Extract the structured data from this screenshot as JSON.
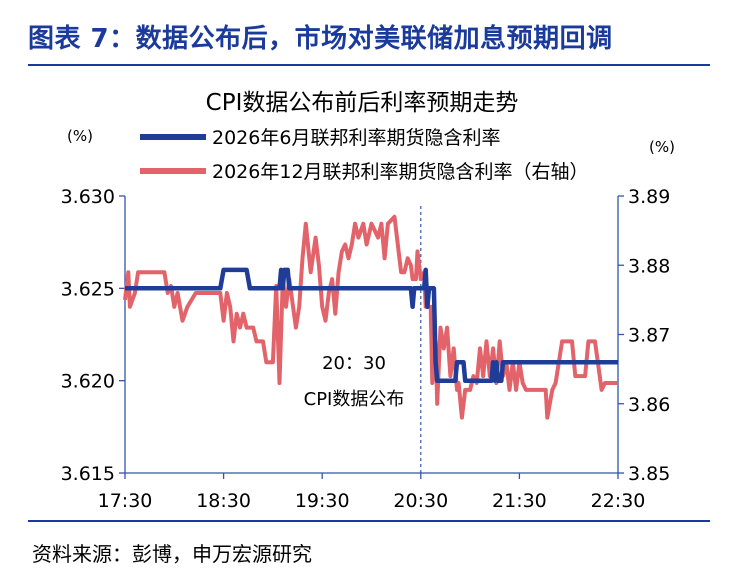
{
  "figure": {
    "title": "图表 7：数据公布后，市场对美联储加息预期回调",
    "source": "资料来源：彭博，申万宏源研究"
  },
  "colors": {
    "heading": "#1a3a9c",
    "series_left": "#1f3c99",
    "series_right": "#e2636a",
    "axis": "#3355aa"
  },
  "chart_data": {
    "type": "line",
    "title": "CPI数据公布前后利率预期走势",
    "left_unit": "(%)",
    "right_unit": "(%)",
    "xlim": [
      0,
      300
    ],
    "x_ticks": [
      {
        "x": 0,
        "label": "17:30"
      },
      {
        "x": 60,
        "label": "18:30"
      },
      {
        "x": 120,
        "label": "19:30"
      },
      {
        "x": 180,
        "label": "20:30"
      },
      {
        "x": 240,
        "label": "21:30"
      },
      {
        "x": 300,
        "label": "22:30"
      }
    ],
    "y_left": {
      "lim": [
        3.615,
        3.63
      ],
      "ticks": [
        "3.615",
        "3.620",
        "3.625",
        "3.630"
      ]
    },
    "y_right": {
      "lim": [
        3.85,
        3.89
      ],
      "ticks": [
        "3.85",
        "3.86",
        "3.87",
        "3.88",
        "3.89"
      ]
    },
    "annotation": {
      "x": 180,
      "line1": "20：30",
      "line2": "CPI数据公布"
    },
    "series": [
      {
        "name": "2026年6月联邦利率期货隐含利率",
        "axis": "left",
        "points": [
          [
            0,
            3.625
          ],
          [
            58,
            3.625
          ],
          [
            60,
            3.626
          ],
          [
            74,
            3.626
          ],
          [
            76,
            3.625
          ],
          [
            94,
            3.625
          ],
          [
            95,
            3.626
          ],
          [
            96,
            3.625
          ],
          [
            97,
            3.626
          ],
          [
            99,
            3.626
          ],
          [
            100,
            3.625
          ],
          [
            174,
            3.625
          ],
          [
            175,
            3.624
          ],
          [
            176,
            3.625
          ],
          [
            182,
            3.625
          ],
          [
            183,
            3.626
          ],
          [
            184,
            3.624
          ],
          [
            185,
            3.625
          ],
          [
            188,
            3.625
          ],
          [
            189,
            3.621
          ],
          [
            190,
            3.62
          ],
          [
            201,
            3.62
          ],
          [
            202,
            3.621
          ],
          [
            206,
            3.621
          ],
          [
            207,
            3.62
          ],
          [
            223,
            3.62
          ],
          [
            224,
            3.621
          ],
          [
            225,
            3.62
          ],
          [
            226,
            3.621
          ],
          [
            227,
            3.62
          ],
          [
            229,
            3.62
          ],
          [
            230,
            3.621
          ],
          [
            300,
            3.621
          ]
        ]
      },
      {
        "name": "2026年12月联邦利率期货隐含利率（右轴）",
        "axis": "right",
        "points": [
          [
            0,
            3.875
          ],
          [
            2,
            3.879
          ],
          [
            3,
            3.874
          ],
          [
            6,
            3.876
          ],
          [
            8,
            3.879
          ],
          [
            24,
            3.879
          ],
          [
            26,
            3.876
          ],
          [
            28,
            3.877
          ],
          [
            30,
            3.874
          ],
          [
            32,
            3.876
          ],
          [
            35,
            3.872
          ],
          [
            38,
            3.874
          ],
          [
            43,
            3.876
          ],
          [
            58,
            3.876
          ],
          [
            60,
            3.872
          ],
          [
            62,
            3.876
          ],
          [
            64,
            3.874
          ],
          [
            66,
            3.869
          ],
          [
            68,
            3.873
          ],
          [
            70,
            3.871
          ],
          [
            72,
            3.873
          ],
          [
            74,
            3.871
          ],
          [
            78,
            3.871
          ],
          [
            80,
            3.869
          ],
          [
            84,
            3.869
          ],
          [
            86,
            3.866
          ],
          [
            90,
            3.866
          ],
          [
            92,
            3.877
          ],
          [
            94,
            3.863
          ],
          [
            96,
            3.878
          ],
          [
            98,
            3.874
          ],
          [
            100,
            3.878
          ],
          [
            104,
            3.871
          ],
          [
            106,
            3.874
          ],
          [
            108,
            3.881
          ],
          [
            110,
            3.886
          ],
          [
            113,
            3.879
          ],
          [
            116,
            3.884
          ],
          [
            118,
            3.88
          ],
          [
            120,
            3.874
          ],
          [
            122,
            3.872
          ],
          [
            124,
            3.876
          ],
          [
            126,
            3.878
          ],
          [
            128,
            3.873
          ],
          [
            130,
            3.879
          ],
          [
            132,
            3.882
          ],
          [
            134,
            3.883
          ],
          [
            136,
            3.881
          ],
          [
            138,
            3.883
          ],
          [
            140,
            3.886
          ],
          [
            142,
            3.884
          ],
          [
            145,
            3.886
          ],
          [
            147,
            3.883
          ],
          [
            150,
            3.886
          ],
          [
            152,
            3.885
          ],
          [
            154,
            3.884
          ],
          [
            156,
            3.886
          ],
          [
            158,
            3.881
          ],
          [
            160,
            3.886
          ],
          [
            164,
            3.887
          ],
          [
            166,
            3.883
          ],
          [
            168,
            3.879
          ],
          [
            170,
            3.879
          ],
          [
            172,
            3.881
          ],
          [
            174,
            3.88
          ],
          [
            175,
            3.878
          ],
          [
            177,
            3.878
          ],
          [
            178,
            3.882
          ],
          [
            180,
            3.878
          ],
          [
            182,
            3.879
          ],
          [
            183,
            3.874
          ],
          [
            186,
            3.874
          ],
          [
            187,
            3.863
          ],
          [
            189,
            3.869
          ],
          [
            190,
            3.86
          ],
          [
            192,
            3.871
          ],
          [
            194,
            3.868
          ],
          [
            196,
            3.871
          ],
          [
            198,
            3.864
          ],
          [
            200,
            3.868
          ],
          [
            202,
            3.862
          ],
          [
            203,
            3.863
          ],
          [
            205,
            3.858
          ],
          [
            207,
            3.862
          ],
          [
            210,
            3.862
          ],
          [
            212,
            3.864
          ],
          [
            214,
            3.863
          ],
          [
            216,
            3.868
          ],
          [
            218,
            3.864
          ],
          [
            220,
            3.869
          ],
          [
            222,
            3.864
          ],
          [
            224,
            3.868
          ],
          [
            226,
            3.863
          ],
          [
            228,
            3.869
          ],
          [
            230,
            3.864
          ],
          [
            232,
            3.866
          ],
          [
            234,
            3.862
          ],
          [
            236,
            3.866
          ],
          [
            238,
            3.862
          ],
          [
            240,
            3.866
          ],
          [
            242,
            3.863
          ],
          [
            244,
            3.862
          ],
          [
            256,
            3.862
          ],
          [
            257,
            3.858
          ],
          [
            260,
            3.862
          ],
          [
            262,
            3.863
          ],
          [
            266,
            3.869
          ],
          [
            272,
            3.869
          ],
          [
            274,
            3.864
          ],
          [
            280,
            3.864
          ],
          [
            282,
            3.869
          ],
          [
            286,
            3.869
          ],
          [
            290,
            3.862
          ],
          [
            292,
            3.863
          ],
          [
            300,
            3.863
          ]
        ]
      }
    ]
  }
}
